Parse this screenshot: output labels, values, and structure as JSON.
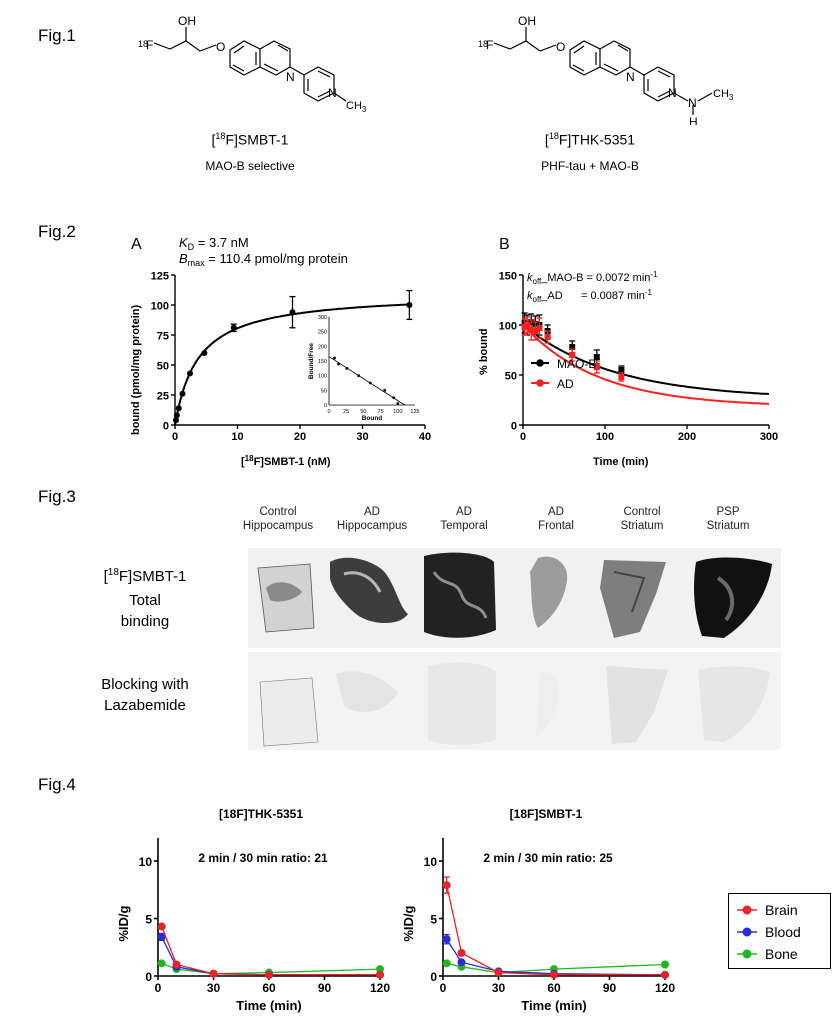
{
  "fig1": {
    "label": "Fig.1",
    "left": {
      "name": "[18F]SMBT-1",
      "iso": "18",
      "name_rest": "F]SMBT-1",
      "desc": "MAO-B selective",
      "atoms": {
        "f": "F",
        "oh": "OH",
        "o": "O",
        "n": "N",
        "me": "CH3"
      }
    },
    "right": {
      "name": "[18F]THK-5351",
      "iso": "18",
      "name_rest": "F]THK-5351",
      "desc": "PHF-tau + MAO-B",
      "atoms": {
        "f": "F",
        "oh": "OH",
        "o": "O",
        "n": "N",
        "nh": "N",
        "h": "H",
        "me": "CH3"
      }
    }
  },
  "fig2": {
    "label": "Fig.2",
    "panelA": {
      "letter": "A",
      "kd_text": "KD = 3.7 nM",
      "kd_sym": "K",
      "kd_sub": "D",
      "kd_val": " = 3.7 nM",
      "bmax_sym": "B",
      "bmax_sub": "max",
      "bmax_val": " = 110.4 pmol/mg protein",
      "ylabel": "bound (pmol/mg protein)",
      "xlabel": "[18F]SMBT-1 (nM)",
      "xlabel_iso": "18",
      "xlabel_rest": "F]SMBT-1 (nM)",
      "inset": {
        "ylabel": "Bound/Free",
        "xlabel": "Bound"
      }
    },
    "panelB": {
      "letter": "B",
      "koff1_text": "koff_MAO-B = 0.0072 min-1",
      "koff1_label": "_MAO-B = 0.0072 min",
      "koff2_text": "koff_AD = 0.0087 min-1",
      "koff2_label": "_AD      = 0.0087 min",
      "k_sym": "k",
      "k_sub": "off",
      "sup": "-1",
      "ylabel": "% bound",
      "xlabel": "Time (min)",
      "legend": [
        "MAO-B",
        "AD"
      ]
    }
  },
  "fig3": {
    "label": "Fig.3",
    "columns": [
      [
        "Control",
        "Hippocampus"
      ],
      [
        "AD",
        "Hippocampus"
      ],
      [
        "AD",
        "Temporal"
      ],
      [
        "AD",
        "Frontal"
      ],
      [
        "Control",
        "Striatum"
      ],
      [
        "PSP",
        "Striatum"
      ]
    ],
    "tracer": "[18F]SMBT-1",
    "tracer_iso": "18",
    "tracer_rest": "F]SMBT-1",
    "row1": [
      "Total",
      "binding"
    ],
    "row2": [
      "Blocking with",
      "Lazabemide"
    ]
  },
  "fig4": {
    "label": "Fig.4",
    "legend": [
      "Brain",
      "Blood",
      "Bone"
    ],
    "colors": {
      "brain": "#e8232a",
      "blood": "#2b2bd6",
      "bone": "#22b522",
      "fit_mao": "#000000",
      "fit_ad": "#ff2020"
    }
  },
  "chart_data": [
    {
      "type": "scatter",
      "panel": "Fig.2 A",
      "title": "",
      "xlabel": "[18F]SMBT-1 (nM)",
      "ylabel": "bound (pmol/mg protein)",
      "xlim": [
        0,
        40
      ],
      "ylim": [
        0,
        125
      ],
      "xticks": [
        0,
        10,
        20,
        30,
        40
      ],
      "yticks": [
        0,
        25,
        50,
        75,
        100,
        125
      ],
      "x": [
        0.15,
        0.3,
        0.6,
        1.2,
        2.4,
        4.7,
        9.4,
        18.8,
        37.5
      ],
      "y": [
        4,
        8,
        14,
        26,
        43,
        60,
        81,
        94,
        100
      ],
      "yerr": [
        0,
        0,
        0,
        0,
        0,
        0,
        3,
        13,
        12
      ],
      "fit": {
        "model": "one-site",
        "Kd": 3.7,
        "Bmax": 110.4
      },
      "annotations": [
        "KD = 3.7 nM",
        "Bmax = 110.4 pmol/mg protein"
      ],
      "inset": {
        "type": "scatter",
        "xlabel": "Bound",
        "ylabel": "Bound/Free",
        "xlim": [
          0,
          125
        ],
        "ylim": [
          0,
          300
        ],
        "xticks": [
          0,
          25,
          50,
          75,
          100,
          125
        ],
        "yticks": [
          0,
          50,
          100,
          150,
          200,
          250,
          300
        ],
        "x": [
          8,
          14,
          26,
          43,
          60,
          81,
          94,
          100
        ],
        "y": [
          160,
          140,
          125,
          100,
          75,
          50,
          25,
          5
        ]
      }
    },
    {
      "type": "line",
      "panel": "Fig.2 B",
      "title": "",
      "xlabel": "Time (min)",
      "ylabel": "% bound",
      "xlim": [
        0,
        300
      ],
      "ylim": [
        0,
        150
      ],
      "xticks": [
        0,
        100,
        200,
        300
      ],
      "yticks": [
        0,
        50,
        100,
        150
      ],
      "legend_position": "center-left",
      "annotations": [
        "koff_MAO-B = 0.0072 min-1",
        "koff_AD = 0.0087 min-1"
      ],
      "series": [
        {
          "name": "MAO-B",
          "x": [
            2,
            5,
            10,
            15,
            20,
            30,
            60,
            90,
            120
          ],
          "y": [
            102,
            100,
            103,
            101,
            100,
            94,
            78,
            68,
            55
          ],
          "yerr": [
            10,
            10,
            8,
            8,
            10,
            6,
            6,
            7,
            4
          ],
          "fit": {
            "koff": 0.0072,
            "plateau": 26
          }
        },
        {
          "name": "AD",
          "x": [
            2,
            5,
            10,
            15,
            20,
            30,
            60,
            90,
            120
          ],
          "y": [
            98,
            100,
            95,
            94,
            97,
            88,
            70,
            58,
            48
          ],
          "yerr": [
            8,
            8,
            10,
            9,
            10,
            6,
            6,
            6,
            4
          ],
          "fit": {
            "koff": 0.0087,
            "plateau": 18
          }
        }
      ]
    },
    {
      "type": "line",
      "panel": "Fig.4 left",
      "title": "[18F]THK-5351",
      "subtitle": "2 min / 30 min ratio: 21",
      "xlabel": "Time (min)",
      "ylabel": "%ID/g",
      "xlim": [
        0,
        120
      ],
      "ylim": [
        0,
        10
      ],
      "xticks": [
        0,
        30,
        60,
        90,
        120
      ],
      "yticks": [
        0,
        5,
        10
      ],
      "x": [
        2,
        10,
        30,
        60,
        120
      ],
      "series": [
        {
          "name": "Brain",
          "values": [
            4.3,
            1.0,
            0.2,
            0.1,
            0.1
          ],
          "yerr": [
            0.2,
            0.1,
            0.05,
            0,
            0
          ]
        },
        {
          "name": "Blood",
          "values": [
            3.4,
            0.8,
            0.2,
            0.1,
            0.1
          ],
          "yerr": [
            0.3,
            0.1,
            0.05,
            0,
            0
          ]
        },
        {
          "name": "Bone",
          "values": [
            1.1,
            0.6,
            0.2,
            0.3,
            0.6
          ],
          "yerr": [
            0.1,
            0.05,
            0.05,
            0.05,
            0.05
          ]
        }
      ]
    },
    {
      "type": "line",
      "panel": "Fig.4 right",
      "title": "[18F]SMBT-1",
      "subtitle": "2 min / 30 min ratio: 25",
      "xlabel": "Time (min)",
      "ylabel": "%ID/g",
      "xlim": [
        0,
        120
      ],
      "ylim": [
        0,
        10
      ],
      "xticks": [
        0,
        30,
        60,
        90,
        120
      ],
      "yticks": [
        0,
        5,
        10
      ],
      "x": [
        2,
        10,
        30,
        60,
        120
      ],
      "series": [
        {
          "name": "Brain",
          "values": [
            7.9,
            2.0,
            0.3,
            0.1,
            0.1
          ],
          "yerr": [
            0.7,
            0.2,
            0.05,
            0,
            0
          ]
        },
        {
          "name": "Blood",
          "values": [
            3.2,
            1.2,
            0.4,
            0.2,
            0.1
          ],
          "yerr": [
            0.4,
            0.1,
            0.05,
            0,
            0
          ]
        },
        {
          "name": "Bone",
          "values": [
            1.1,
            0.8,
            0.3,
            0.6,
            1.0
          ],
          "yerr": [
            0.1,
            0.05,
            0.05,
            0.05,
            0.1
          ]
        }
      ]
    }
  ]
}
